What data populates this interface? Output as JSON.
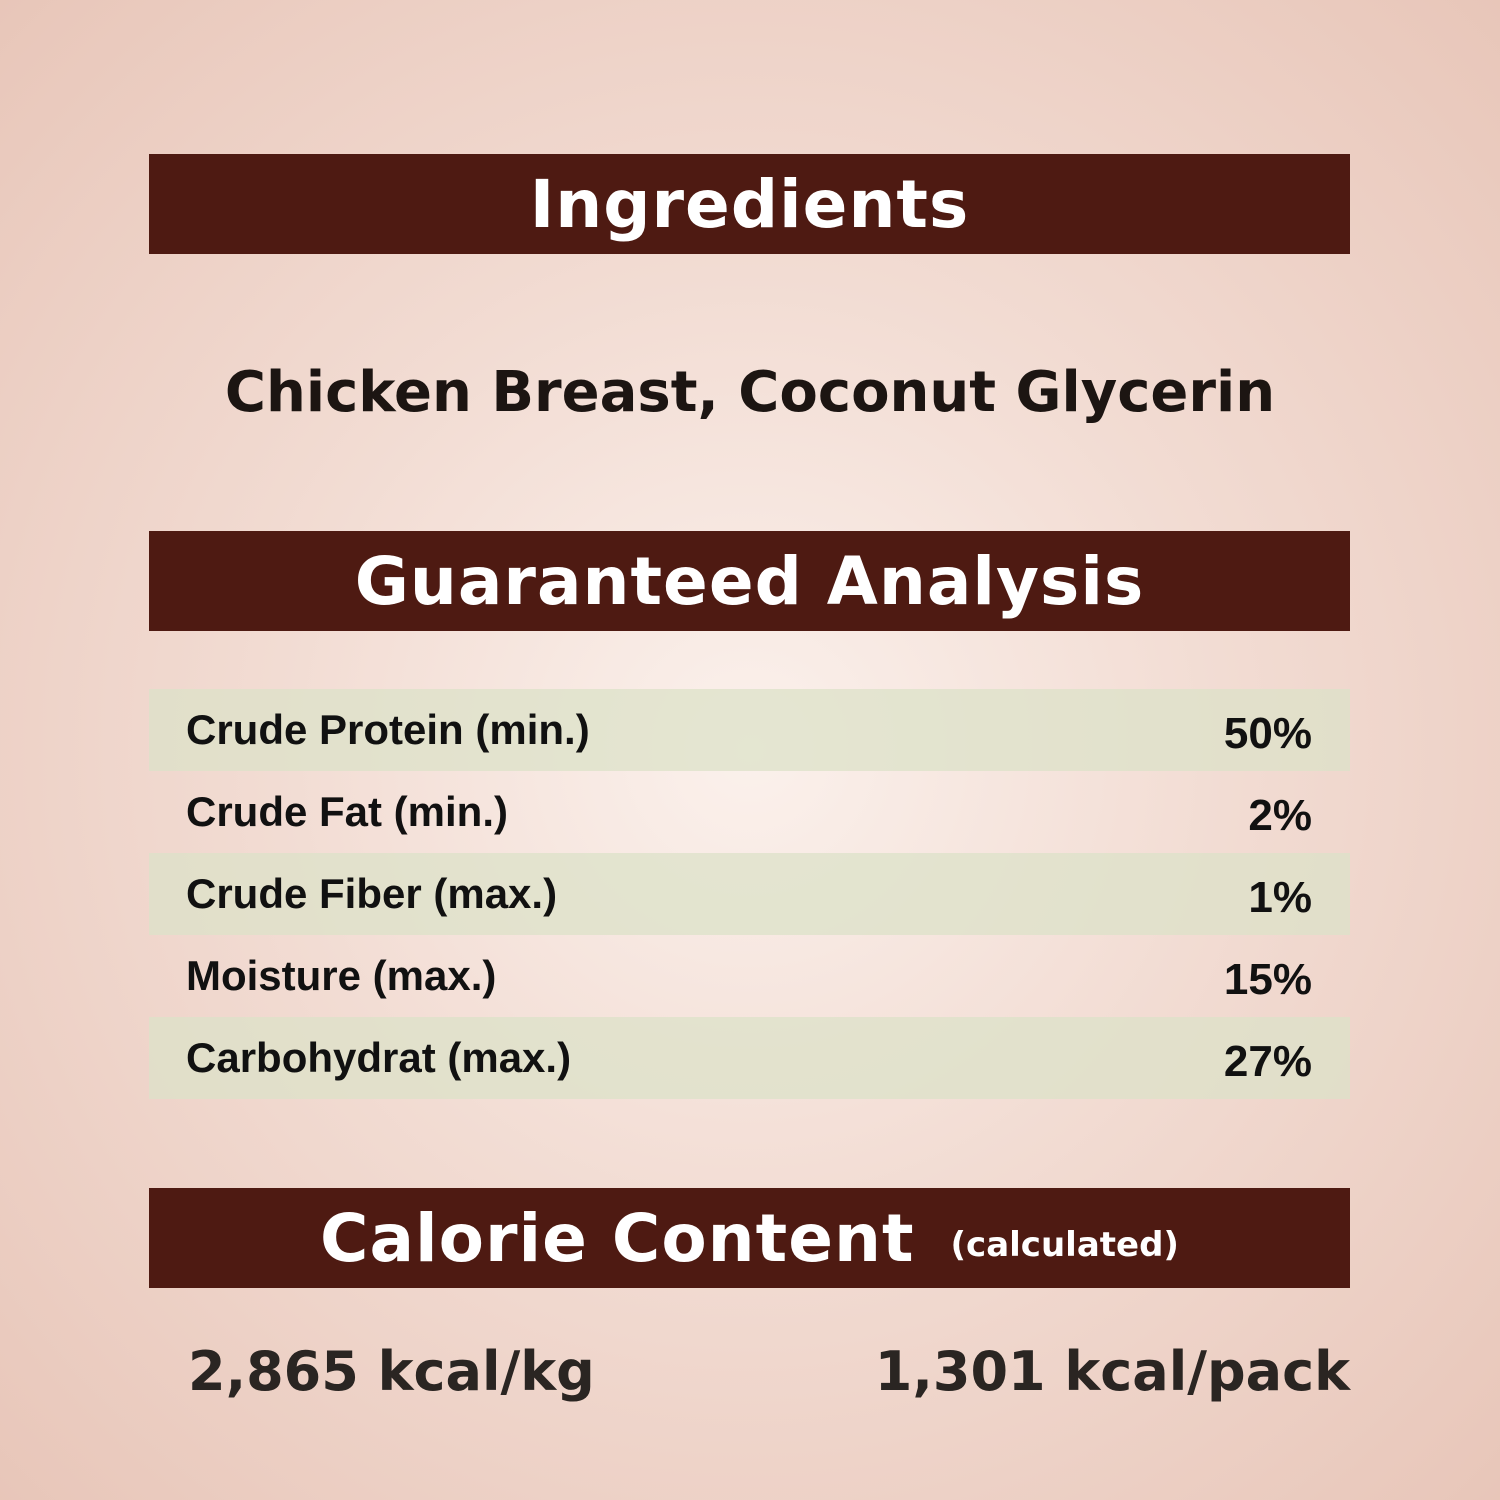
{
  "ingredients": {
    "title": "Ingredients",
    "text": "Chicken Breast, Coconut Glycerin"
  },
  "analysis": {
    "title": "Guaranteed Analysis",
    "rows": [
      {
        "label": "Crude Protein (min.)",
        "value": "50%"
      },
      {
        "label": "Crude Fat (min.)",
        "value": "2%"
      },
      {
        "label": "Crude Fiber (max.)",
        "value": "1%"
      },
      {
        "label": "Moisture (max.)",
        "value": "15%"
      },
      {
        "label": "Carbohydrat (max.)",
        "value": "27%"
      }
    ]
  },
  "calorie": {
    "title": "Calorie Content",
    "subtitle": "(calculated)",
    "per_kg": "2,865 kcal/kg",
    "per_pack": "1,301 kcal/pack"
  },
  "colors": {
    "header_bg": "#4e1a12",
    "row_stripe": "#dce2c8"
  }
}
